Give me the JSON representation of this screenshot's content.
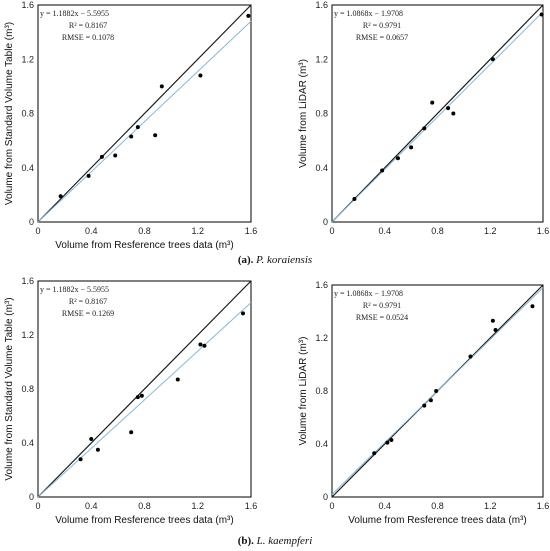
{
  "chart_data": [
    {
      "type": "scatter",
      "panel": "a",
      "xlabel": "Volume from Resference trees data (m³)",
      "ylabel": "Volume from Standard Volume Table (m³)",
      "xlim": [
        0,
        1.6
      ],
      "ylim": [
        0,
        1.6
      ],
      "x_ticks": [
        "0",
        "0.4",
        "0.8",
        "1.2",
        "1.6"
      ],
      "y_ticks": [
        "0",
        "0.4",
        "0.8",
        "1.2",
        "1.6"
      ],
      "legend_position": "top-left",
      "stats": [
        "y = 1.1882x − 5.5955",
        "R² = 0.8167",
        "RMSE = 0.1078"
      ],
      "points": [
        [
          0.17,
          0.19
        ],
        [
          0.38,
          0.34
        ],
        [
          0.48,
          0.48
        ],
        [
          0.58,
          0.49
        ],
        [
          0.7,
          0.63
        ],
        [
          0.75,
          0.7
        ],
        [
          0.88,
          0.64
        ],
        [
          0.93,
          1.0
        ],
        [
          1.22,
          1.08
        ],
        [
          1.58,
          1.52
        ]
      ],
      "lines": [
        {
          "kind": "1:1",
          "color": "#1a1a1a",
          "points": [
            [
              0,
              0
            ],
            [
              1.6,
              1.6
            ]
          ]
        },
        {
          "kind": "fit",
          "color": "#88b8d8",
          "points": [
            [
              0,
              0
            ],
            [
              1.6,
              1.48
            ]
          ]
        }
      ]
    },
    {
      "type": "scatter",
      "panel": "a",
      "xlabel": "",
      "ylabel": "Volume from LiDAR (m³)",
      "xlim": [
        0,
        1.6
      ],
      "ylim": [
        0,
        1.6
      ],
      "x_ticks": [
        "0",
        "0.4",
        "0.8",
        "1.2",
        "1.6"
      ],
      "y_ticks": [
        "0",
        "0.4",
        "0.8",
        "1.2",
        "1.6"
      ],
      "legend_position": "top-left",
      "stats": [
        "y = 1.0868x − 1.9708",
        "R² = 0.9791",
        "RMSE = 0.0657"
      ],
      "points": [
        [
          0.17,
          0.17
        ],
        [
          0.38,
          0.38
        ],
        [
          0.5,
          0.47
        ],
        [
          0.6,
          0.55
        ],
        [
          0.7,
          0.69
        ],
        [
          0.76,
          0.88
        ],
        [
          0.88,
          0.84
        ],
        [
          0.92,
          0.8
        ],
        [
          1.22,
          1.2
        ],
        [
          1.59,
          1.53
        ]
      ],
      "lines": [
        {
          "kind": "1:1",
          "color": "#1a1a1a",
          "points": [
            [
              0,
              0
            ],
            [
              1.6,
              1.6
            ]
          ]
        },
        {
          "kind": "fit",
          "color": "#88b8d8",
          "points": [
            [
              0,
              0
            ],
            [
              1.6,
              1.55
            ]
          ]
        }
      ]
    },
    {
      "type": "scatter",
      "panel": "b",
      "xlabel": "Volume from Resference trees data (m³)",
      "ylabel": "Volume from Standard Volume Table (m³)",
      "xlim": [
        0,
        1.6
      ],
      "ylim": [
        0,
        1.6
      ],
      "x_ticks": [
        "0",
        "0.4",
        "0.8",
        "1.2",
        "1.6"
      ],
      "y_ticks": [
        "0",
        "0.4",
        "0.8",
        "1.2",
        "1.6"
      ],
      "legend_position": "top-left",
      "stats": [
        "y = 1.1882x − 5.5955",
        "R² = 0.8167",
        "RMSE = 0.1269"
      ],
      "points": [
        [
          0.32,
          0.28
        ],
        [
          0.4,
          0.43
        ],
        [
          0.45,
          0.35
        ],
        [
          0.7,
          0.48
        ],
        [
          0.75,
          0.74
        ],
        [
          0.78,
          0.75
        ],
        [
          1.05,
          0.87
        ],
        [
          1.22,
          1.13
        ],
        [
          1.25,
          1.12
        ],
        [
          1.54,
          1.36
        ]
      ],
      "lines": [
        {
          "kind": "1:1",
          "color": "#1a1a1a",
          "points": [
            [
              0,
              0
            ],
            [
              1.6,
              1.6
            ]
          ]
        },
        {
          "kind": "fit",
          "color": "#88b8d8",
          "points": [
            [
              0,
              0
            ],
            [
              1.6,
              1.44
            ]
          ]
        }
      ]
    },
    {
      "type": "scatter",
      "panel": "b",
      "xlabel": "Volume from Resference trees data (m³)",
      "ylabel": "Volume from LiDAR (m³)",
      "xlim": [
        0,
        1.6
      ],
      "ylim": [
        0,
        1.6
      ],
      "x_ticks": [
        "0",
        "0.4",
        "0.8",
        "1.2",
        "1.6"
      ],
      "y_ticks": [
        "0",
        "0.4",
        "0.8",
        "1.2",
        "1.6"
      ],
      "legend_position": "top-left",
      "stats": [
        "y = 1.0868x − 1.9708",
        "R² = 0.9791",
        "RMSE = 0.0524"
      ],
      "points": [
        [
          0.32,
          0.33
        ],
        [
          0.42,
          0.41
        ],
        [
          0.45,
          0.43
        ],
        [
          0.7,
          0.69
        ],
        [
          0.75,
          0.73
        ],
        [
          0.79,
          0.8
        ],
        [
          1.05,
          1.06
        ],
        [
          1.22,
          1.33
        ],
        [
          1.24,
          1.26
        ],
        [
          1.52,
          1.44
        ]
      ],
      "lines": [
        {
          "kind": "1:1",
          "color": "#1a1a1a",
          "points": [
            [
              0,
              0
            ],
            [
              1.6,
              1.6
            ]
          ]
        },
        {
          "kind": "fit",
          "color": "#88b8d8",
          "points": [
            [
              0,
              0.02
            ],
            [
              1.6,
              1.58
            ]
          ]
        }
      ]
    }
  ],
  "captions": [
    {
      "label": "(a).",
      "species": "P. koraiensis"
    },
    {
      "label": "(b).",
      "species": "L. kaempferi"
    }
  ]
}
